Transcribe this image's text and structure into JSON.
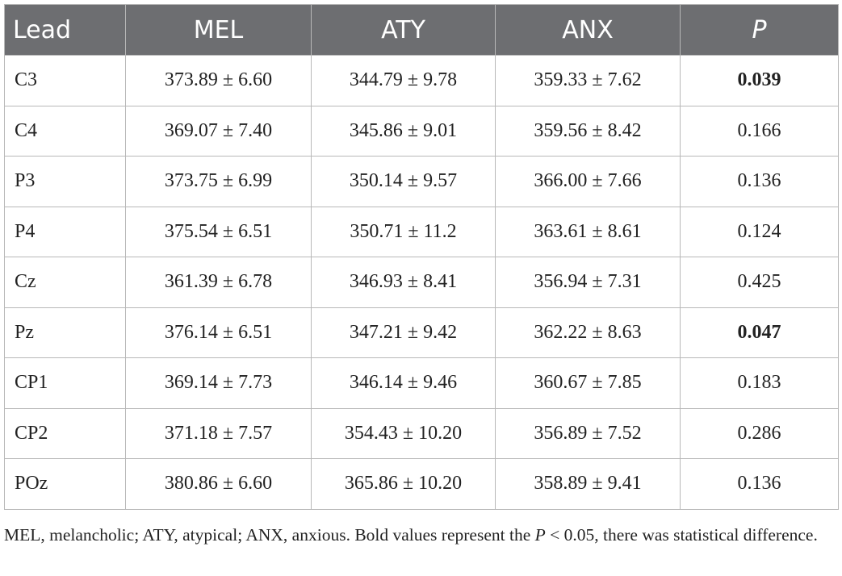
{
  "table": {
    "header": [
      "Lead",
      "MEL",
      "ATY",
      "ANX",
      "P"
    ],
    "header_italic": [
      4
    ],
    "rows": [
      [
        "C3",
        "373.89 ± 6.60",
        "344.79 ± 9.78",
        "359.33 ± 7.62",
        "0.039"
      ],
      [
        "C4",
        "369.07 ± 7.40",
        "345.86 ± 9.01",
        "359.56 ± 8.42",
        "0.166"
      ],
      [
        "P3",
        "373.75 ± 6.99",
        "350.14 ± 9.57",
        "366.00 ± 7.66",
        "0.136"
      ],
      [
        "P4",
        "375.54 ± 6.51",
        "350.71 ± 11.2",
        "363.61 ± 8.61",
        "0.124"
      ],
      [
        "Cz",
        "361.39 ± 6.78",
        "346.93 ± 8.41",
        "356.94 ± 7.31",
        "0.425"
      ],
      [
        "Pz",
        "376.14 ± 6.51",
        "347.21 ± 9.42",
        "362.22 ± 8.63",
        "0.047"
      ],
      [
        "CP1",
        "369.14 ± 7.73",
        "346.14 ± 9.46",
        "360.67 ± 7.85",
        "0.183"
      ],
      [
        "CP2",
        "371.18 ± 7.57",
        "354.43 ± 10.20",
        "356.89 ± 7.52",
        "0.286"
      ],
      [
        "POz",
        "380.86 ± 6.60",
        "365.86 ± 10.20",
        "358.89 ± 9.41",
        "0.136"
      ]
    ],
    "bold_cells": [
      [
        0,
        4
      ],
      [
        5,
        4
      ]
    ]
  },
  "footnote": [
    "MEL, melancholic; ATY, atypical; ANX, anxious. Bold values represent the ",
    "P",
    " < 0.05, there was statistical difference."
  ],
  "footnote_italic": [
    1
  ]
}
